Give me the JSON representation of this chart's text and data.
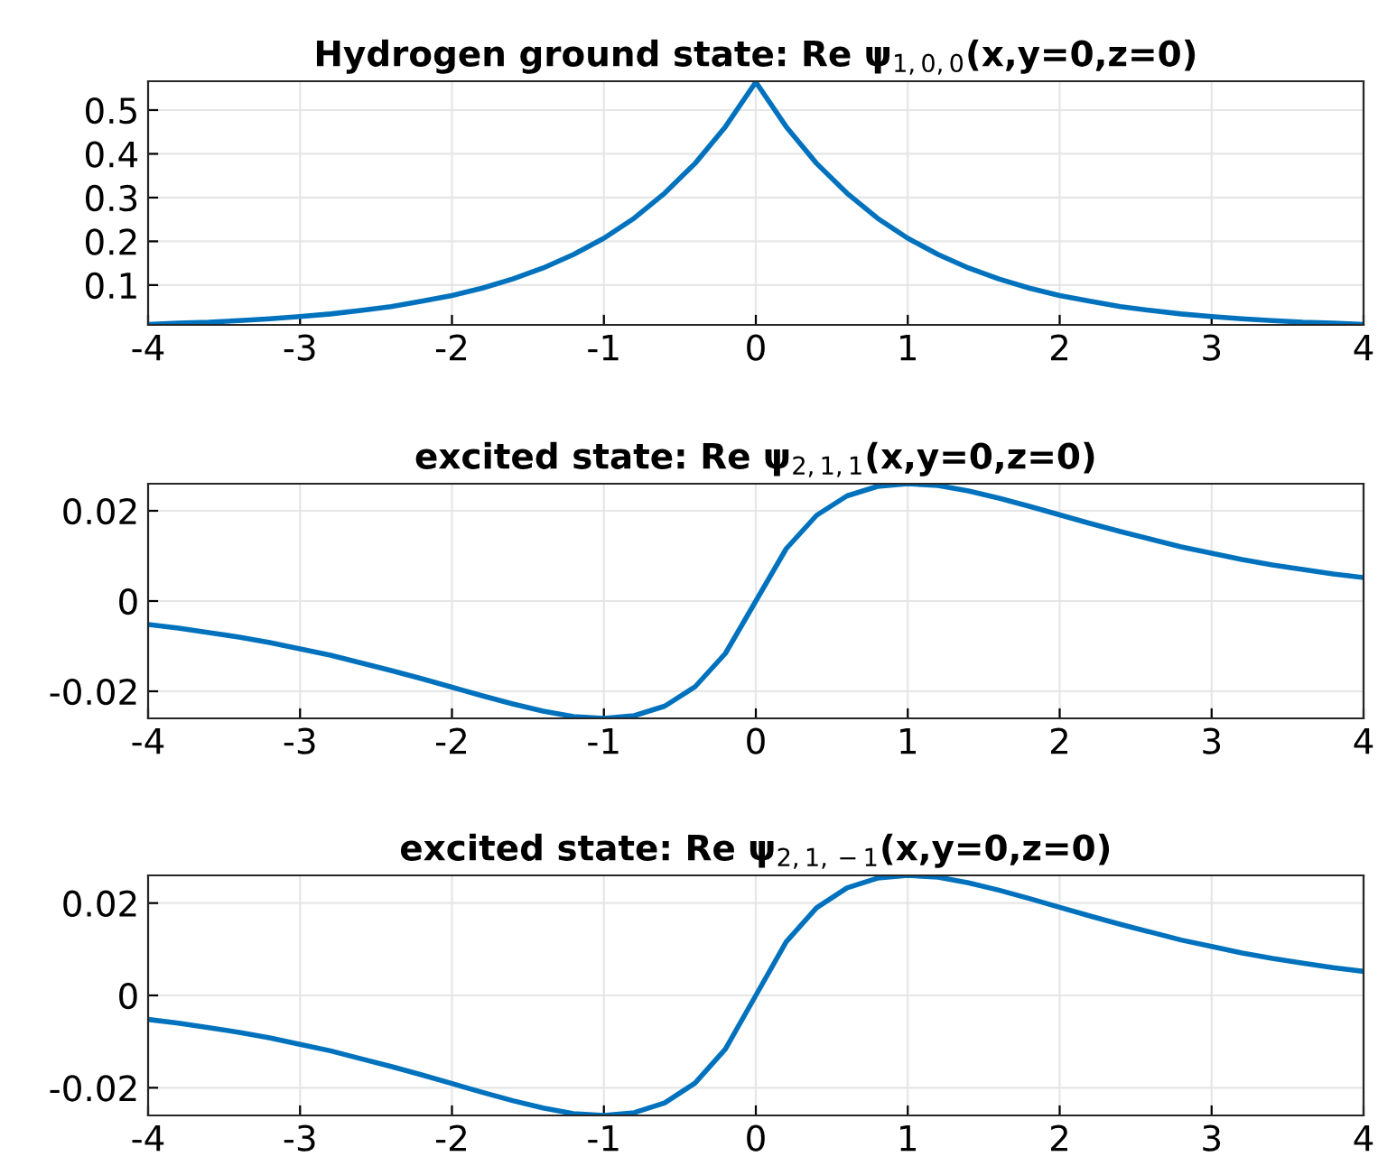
{
  "chart_data": [
    {
      "type": "line",
      "title": "Hydrogen ground state: Re ψ$_{1,0,0}$(x,y=0,z=0)",
      "x": [
        -4,
        -3.8,
        -3.6,
        -3.4,
        -3.2,
        -3,
        -2.8,
        -2.6,
        -2.4,
        -2.2,
        -2,
        -1.8,
        -1.6,
        -1.4,
        -1.2,
        -1,
        -0.8,
        -0.6,
        -0.4,
        -0.2,
        0,
        0.2,
        0.4,
        0.6,
        0.8,
        1,
        1.2,
        1.4,
        1.6,
        1.8,
        2,
        2.2,
        2.4,
        2.6,
        2.8,
        3,
        3.2,
        3.4,
        3.6,
        3.8,
        4
      ],
      "series": [
        {
          "color": "#0072bd",
          "values": [
            0.01,
            0.013,
            0.015,
            0.019,
            0.023,
            0.028,
            0.034,
            0.042,
            0.051,
            0.063,
            0.076,
            0.093,
            0.114,
            0.139,
            0.17,
            0.207,
            0.253,
            0.31,
            0.378,
            0.462,
            0.564,
            0.462,
            0.378,
            0.31,
            0.253,
            0.207,
            0.17,
            0.139,
            0.114,
            0.093,
            0.076,
            0.063,
            0.051,
            0.042,
            0.034,
            0.028,
            0.023,
            0.019,
            0.015,
            0.013,
            0.01
          ]
        }
      ],
      "xlim": [
        -4,
        4
      ],
      "xticks": [
        -4,
        -3,
        -2,
        -1,
        0,
        1,
        2,
        3,
        4
      ],
      "ylim": [
        0.009,
        0.566
      ],
      "yticks": [
        0.1,
        0.2,
        0.3,
        0.4,
        0.5
      ],
      "grid": true,
      "legend": false,
      "marker": "none",
      "line_style": "solid"
    },
    {
      "type": "line",
      "title": "excited state: Re ψ$_{2,1,1}$(x,y=0,z=0)",
      "x": [
        -4,
        -3.8,
        -3.6,
        -3.4,
        -3.2,
        -3,
        -2.8,
        -2.6,
        -2.4,
        -2.2,
        -2,
        -1.8,
        -1.6,
        -1.4,
        -1.2,
        -1,
        -0.8,
        -0.6,
        -0.4,
        -0.2,
        0,
        0.2,
        0.4,
        0.6,
        0.8,
        1,
        1.2,
        1.4,
        1.6,
        1.8,
        2,
        2.2,
        2.4,
        2.6,
        2.8,
        3,
        3.2,
        3.4,
        3.6,
        3.8,
        4
      ],
      "series": [
        {
          "color": "#0072bd",
          "values": [
            -0.0052,
            -0.006,
            -0.007,
            -0.008,
            -0.0092,
            -0.0106,
            -0.012,
            -0.0137,
            -0.0154,
            -0.0172,
            -0.0191,
            -0.021,
            -0.0228,
            -0.0244,
            -0.0256,
            -0.026,
            -0.0254,
            -0.0233,
            -0.019,
            -0.0116,
            0,
            0.0116,
            0.019,
            0.0233,
            0.0254,
            0.026,
            0.0256,
            0.0244,
            0.0228,
            0.021,
            0.0191,
            0.0172,
            0.0154,
            0.0137,
            0.012,
            0.0106,
            0.0092,
            0.008,
            0.007,
            0.006,
            0.0052
          ]
        }
      ],
      "xlim": [
        -4,
        4
      ],
      "xticks": [
        -4,
        -3,
        -2,
        -1,
        0,
        1,
        2,
        3,
        4
      ],
      "ylim": [
        -0.026,
        0.026
      ],
      "yticks": [
        -0.02,
        0,
        0.02
      ],
      "grid": true,
      "legend": false,
      "marker": "none",
      "line_style": "solid"
    },
    {
      "type": "line",
      "title": "excited state: Re ψ$_{2,1,−1}$(x,y=0,z=0)",
      "x": [
        -4,
        -3.8,
        -3.6,
        -3.4,
        -3.2,
        -3,
        -2.8,
        -2.6,
        -2.4,
        -2.2,
        -2,
        -1.8,
        -1.6,
        -1.4,
        -1.2,
        -1,
        -0.8,
        -0.6,
        -0.4,
        -0.2,
        0,
        0.2,
        0.4,
        0.6,
        0.8,
        1,
        1.2,
        1.4,
        1.6,
        1.8,
        2,
        2.2,
        2.4,
        2.6,
        2.8,
        3,
        3.2,
        3.4,
        3.6,
        3.8,
        4
      ],
      "series": [
        {
          "color": "#0072bd",
          "values": [
            -0.0052,
            -0.006,
            -0.007,
            -0.008,
            -0.0092,
            -0.0106,
            -0.012,
            -0.0137,
            -0.0154,
            -0.0172,
            -0.0191,
            -0.021,
            -0.0228,
            -0.0244,
            -0.0256,
            -0.026,
            -0.0254,
            -0.0233,
            -0.019,
            -0.0116,
            0,
            0.0116,
            0.019,
            0.0233,
            0.0254,
            0.026,
            0.0256,
            0.0244,
            0.0228,
            0.021,
            0.0191,
            0.0172,
            0.0154,
            0.0137,
            0.012,
            0.0106,
            0.0092,
            0.008,
            0.007,
            0.006,
            0.0052
          ]
        }
      ],
      "xlim": [
        -4,
        4
      ],
      "xticks": [
        -4,
        -3,
        -2,
        -1,
        0,
        1,
        2,
        3,
        4
      ],
      "ylim": [
        -0.026,
        0.026
      ],
      "yticks": [
        -0.02,
        0,
        0.02
      ],
      "grid": true,
      "legend": false,
      "marker": "none",
      "line_style": "solid"
    }
  ]
}
